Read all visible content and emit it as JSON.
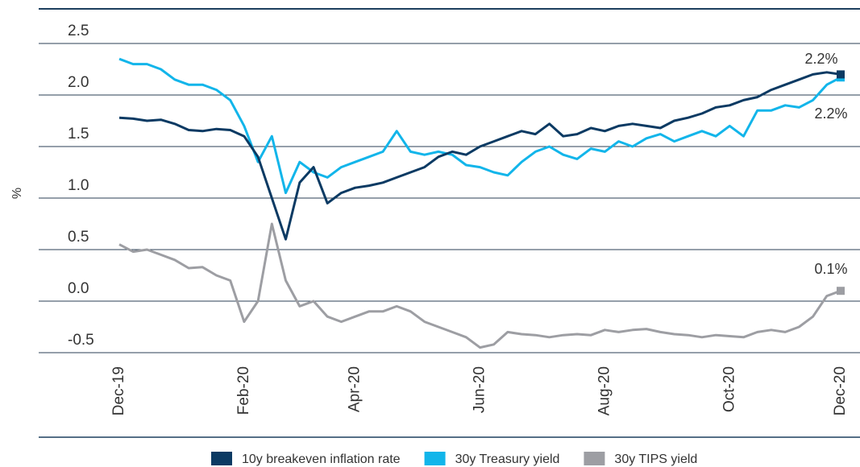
{
  "chart_data": {
    "type": "line",
    "ylabel": "%",
    "categories": [
      "Dec-19",
      null,
      null,
      null,
      null,
      null,
      null,
      null,
      null,
      "Feb-20",
      null,
      null,
      null,
      null,
      null,
      null,
      null,
      "Apr-20",
      null,
      null,
      null,
      null,
      null,
      null,
      null,
      null,
      "Jun-20",
      null,
      null,
      null,
      null,
      null,
      null,
      null,
      null,
      "Aug-20",
      null,
      null,
      null,
      null,
      null,
      null,
      null,
      null,
      "Oct-20",
      null,
      null,
      null,
      null,
      null,
      null,
      null,
      "Dec-20"
    ],
    "series": [
      {
        "name": "10y breakeven inflation rate",
        "color": "#0b3a63",
        "end_label": "2.2%",
        "values": [
          1.78,
          1.77,
          1.75,
          1.76,
          1.72,
          1.66,
          1.65,
          1.67,
          1.66,
          1.6,
          1.4,
          1.0,
          0.6,
          1.15,
          1.3,
          0.95,
          1.05,
          1.1,
          1.12,
          1.15,
          1.2,
          1.25,
          1.3,
          1.4,
          1.45,
          1.42,
          1.5,
          1.55,
          1.6,
          1.65,
          1.62,
          1.72,
          1.6,
          1.62,
          1.68,
          1.65,
          1.7,
          1.72,
          1.7,
          1.68,
          1.75,
          1.78,
          1.82,
          1.88,
          1.9,
          1.95,
          1.98,
          2.05,
          2.1,
          2.15,
          2.2,
          2.22,
          2.2
        ]
      },
      {
        "name": "30y Treasury yield",
        "color": "#12b5ea",
        "end_label": "2.2%",
        "values": [
          2.35,
          2.3,
          2.3,
          2.25,
          2.15,
          2.1,
          2.1,
          2.05,
          1.95,
          1.7,
          1.35,
          1.6,
          1.05,
          1.35,
          1.25,
          1.2,
          1.3,
          1.35,
          1.4,
          1.45,
          1.65,
          1.45,
          1.42,
          1.45,
          1.42,
          1.32,
          1.3,
          1.25,
          1.22,
          1.35,
          1.45,
          1.5,
          1.42,
          1.38,
          1.48,
          1.45,
          1.55,
          1.5,
          1.58,
          1.62,
          1.55,
          1.6,
          1.65,
          1.6,
          1.7,
          1.6,
          1.85,
          1.85,
          1.9,
          1.88,
          1.95,
          2.1,
          2.17
        ]
      },
      {
        "name": "30y TIPS yield",
        "color": "#9d9ea3",
        "end_label": "0.1%",
        "values": [
          0.55,
          0.48,
          0.5,
          0.45,
          0.4,
          0.32,
          0.33,
          0.25,
          0.2,
          -0.2,
          0.0,
          0.75,
          0.2,
          -0.05,
          0.0,
          -0.15,
          -0.2,
          -0.15,
          -0.1,
          -0.1,
          -0.05,
          -0.1,
          -0.2,
          -0.25,
          -0.3,
          -0.35,
          -0.45,
          -0.42,
          -0.3,
          -0.32,
          -0.33,
          -0.35,
          -0.33,
          -0.32,
          -0.33,
          -0.28,
          -0.3,
          -0.28,
          -0.27,
          -0.3,
          -0.32,
          -0.33,
          -0.35,
          -0.33,
          -0.34,
          -0.35,
          -0.3,
          -0.28,
          -0.3,
          -0.25,
          -0.15,
          0.05,
          0.1
        ]
      }
    ],
    "ylim": [
      -0.5,
      2.5
    ],
    "yticks": [
      {
        "value": -0.5,
        "label": "-0.5"
      },
      {
        "value": 0,
        "label": "0.0"
      },
      0.5,
      {
        "value": 1,
        "label": "1.0"
      },
      1.5,
      {
        "value": 2,
        "label": "2.0"
      },
      2.5
    ],
    "grid": true
  }
}
